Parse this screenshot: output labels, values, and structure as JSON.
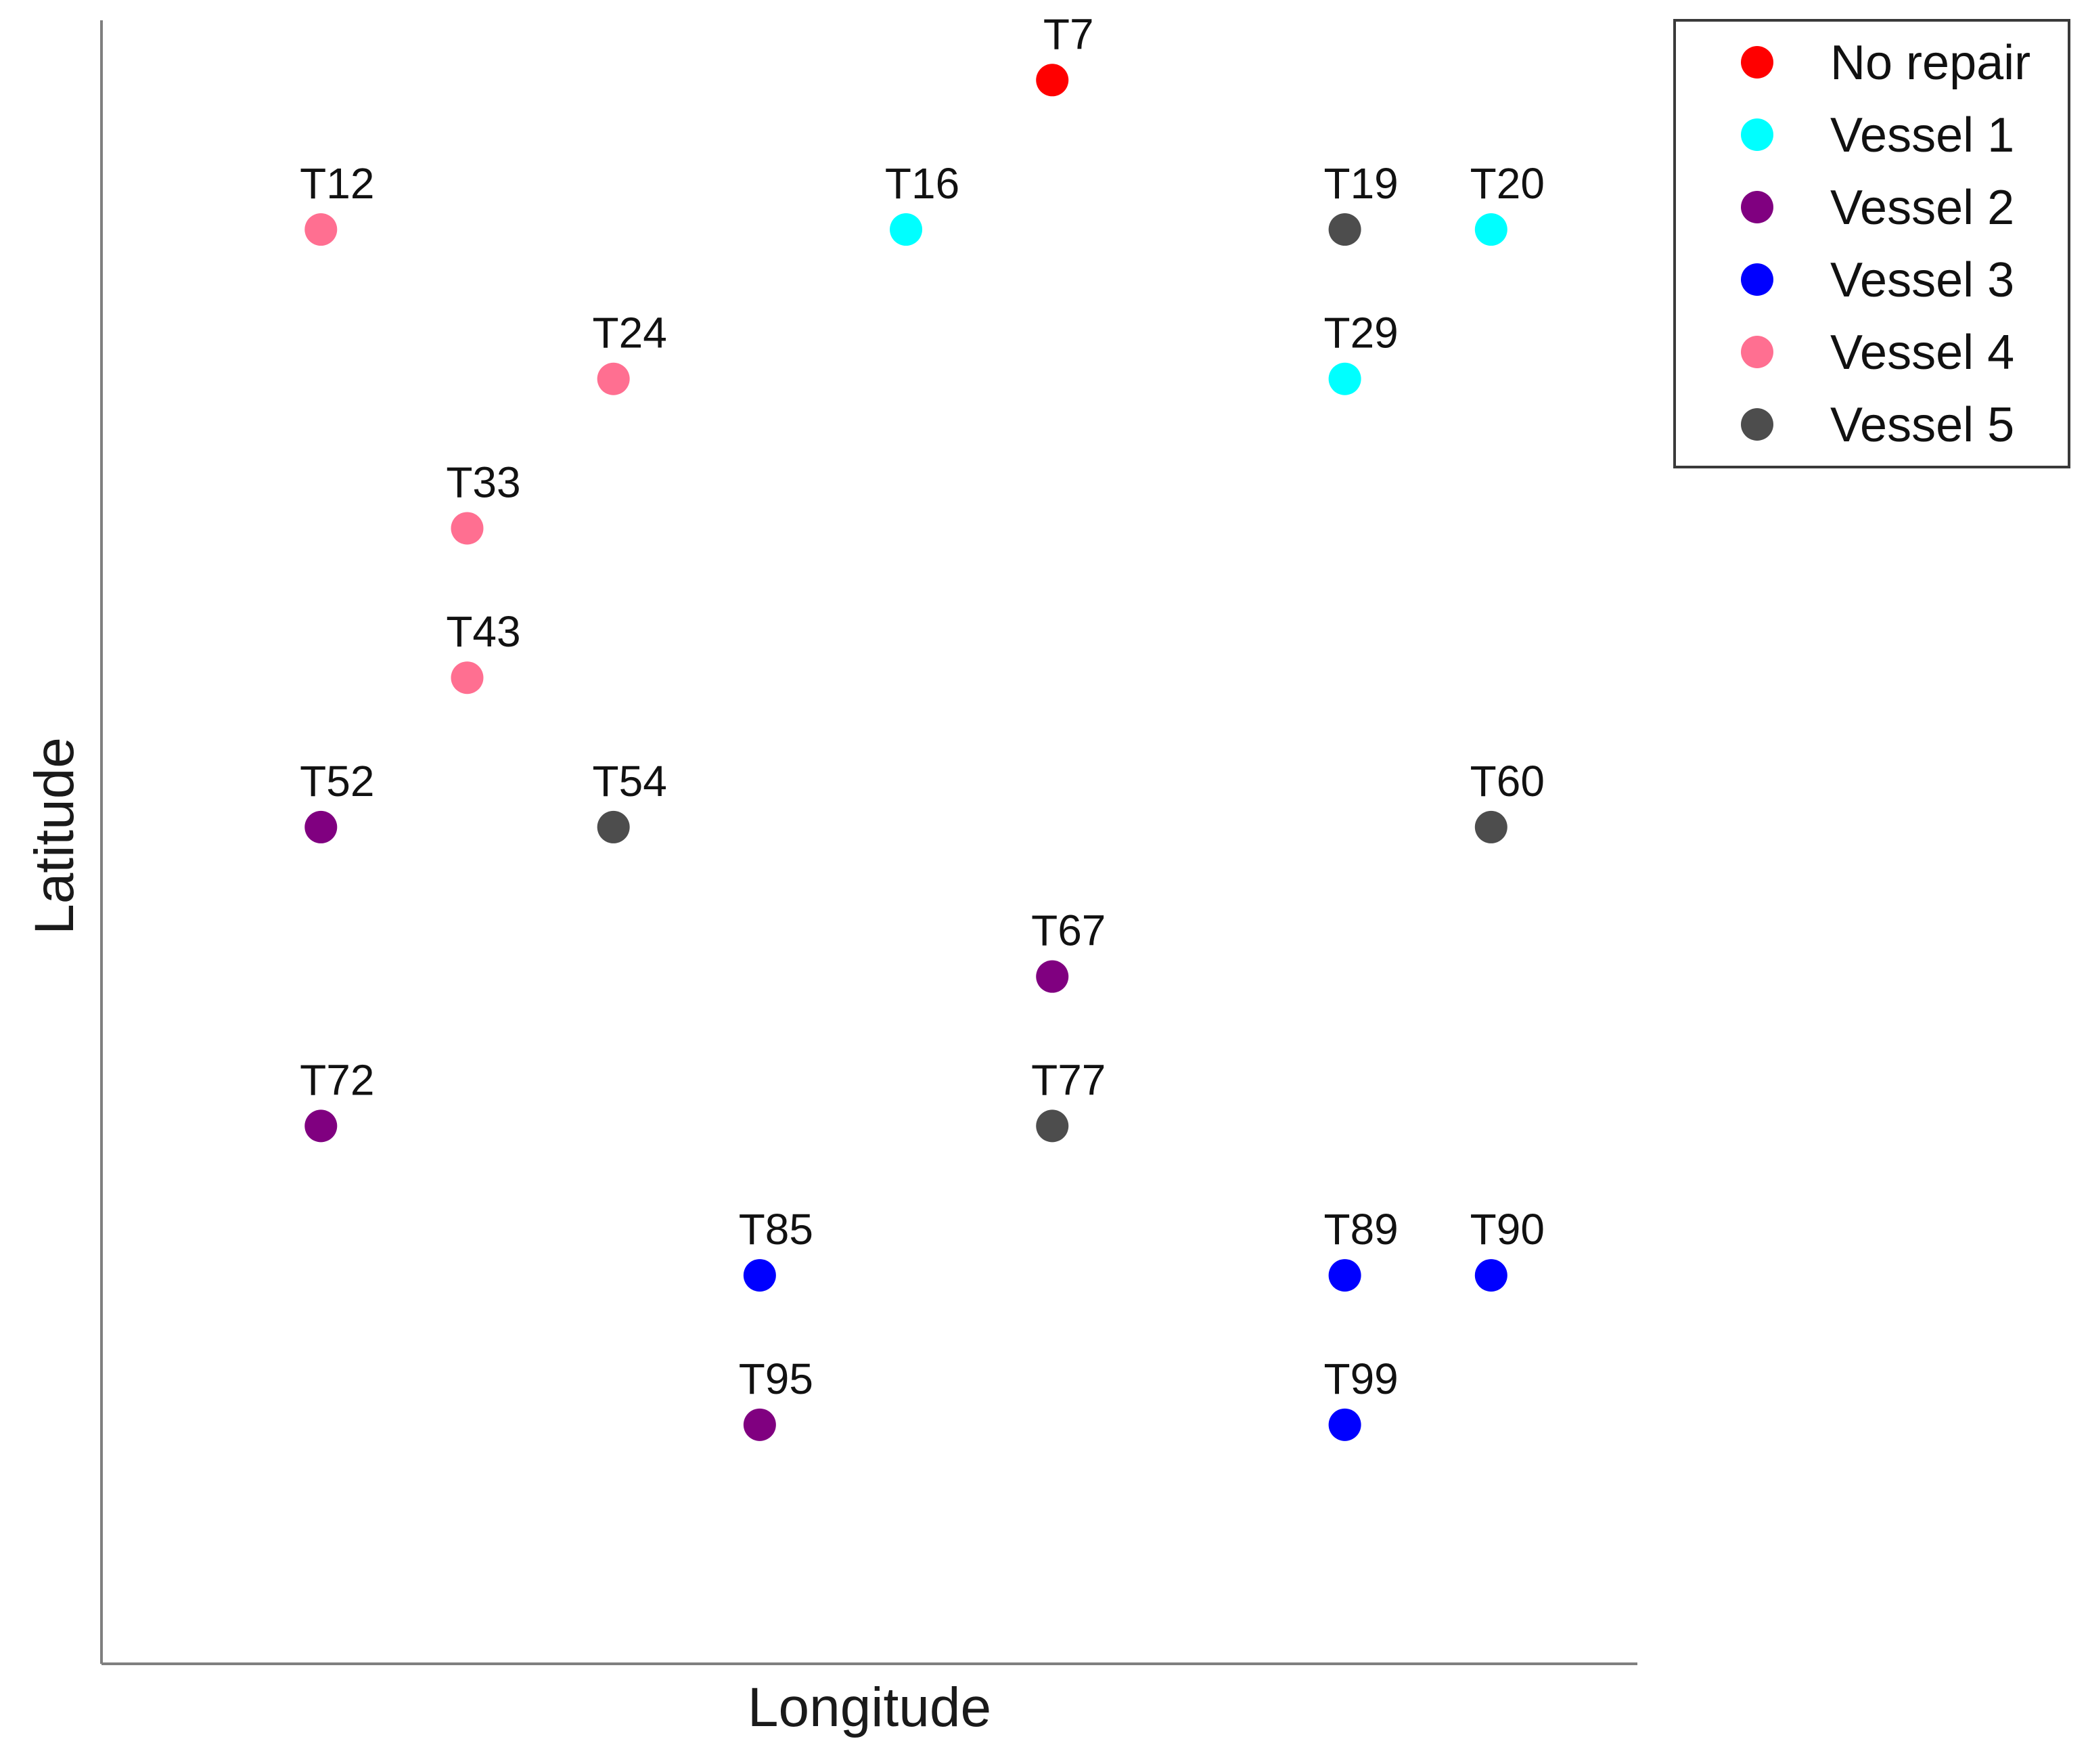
{
  "chart_data": {
    "type": "scatter",
    "title": "",
    "xlabel": "Longitude",
    "ylabel": "Latitude",
    "xlim": [
      0.5,
      11
    ],
    "ylim": [
      0,
      11
    ],
    "grid": false,
    "legend_position": "top-right",
    "series": [
      {
        "name": "No repair",
        "color": "#ff0000"
      },
      {
        "name": "Vessel 1",
        "color": "#00ffff"
      },
      {
        "name": "Vessel 2",
        "color": "#800080"
      },
      {
        "name": "Vessel 3",
        "color": "#0000ff"
      },
      {
        "name": "Vessel 4",
        "color": "#ff6f91"
      },
      {
        "name": "Vessel 5",
        "color": "#4d4d4d"
      }
    ],
    "points": [
      {
        "label": "T7",
        "x": 7,
        "y": 10.6,
        "series": "No repair"
      },
      {
        "label": "T12",
        "x": 2,
        "y": 9.6,
        "series": "Vessel 4"
      },
      {
        "label": "T16",
        "x": 6,
        "y": 9.6,
        "series": "Vessel 1"
      },
      {
        "label": "T19",
        "x": 9,
        "y": 9.6,
        "series": "Vessel 5"
      },
      {
        "label": "T20",
        "x": 10,
        "y": 9.6,
        "series": "Vessel 1"
      },
      {
        "label": "T24",
        "x": 4,
        "y": 8.6,
        "series": "Vessel 4"
      },
      {
        "label": "T29",
        "x": 9,
        "y": 8.6,
        "series": "Vessel 1"
      },
      {
        "label": "T33",
        "x": 3,
        "y": 7.6,
        "series": "Vessel 4"
      },
      {
        "label": "T43",
        "x": 3,
        "y": 6.6,
        "series": "Vessel 4"
      },
      {
        "label": "T52",
        "x": 2,
        "y": 5.6,
        "series": "Vessel 2"
      },
      {
        "label": "T54",
        "x": 4,
        "y": 5.6,
        "series": "Vessel 5"
      },
      {
        "label": "T60",
        "x": 10,
        "y": 5.6,
        "series": "Vessel 5"
      },
      {
        "label": "T67",
        "x": 7,
        "y": 4.6,
        "series": "Vessel 2"
      },
      {
        "label": "T72",
        "x": 2,
        "y": 3.6,
        "series": "Vessel 2"
      },
      {
        "label": "T77",
        "x": 7,
        "y": 3.6,
        "series": "Vessel 5"
      },
      {
        "label": "T85",
        "x": 5,
        "y": 2.6,
        "series": "Vessel 3"
      },
      {
        "label": "T89",
        "x": 9,
        "y": 2.6,
        "series": "Vessel 3"
      },
      {
        "label": "T90",
        "x": 10,
        "y": 2.6,
        "series": "Vessel 3"
      },
      {
        "label": "T95",
        "x": 5,
        "y": 1.6,
        "series": "Vessel 2"
      },
      {
        "label": "T99",
        "x": 9,
        "y": 1.6,
        "series": "Vessel 3"
      }
    ]
  }
}
